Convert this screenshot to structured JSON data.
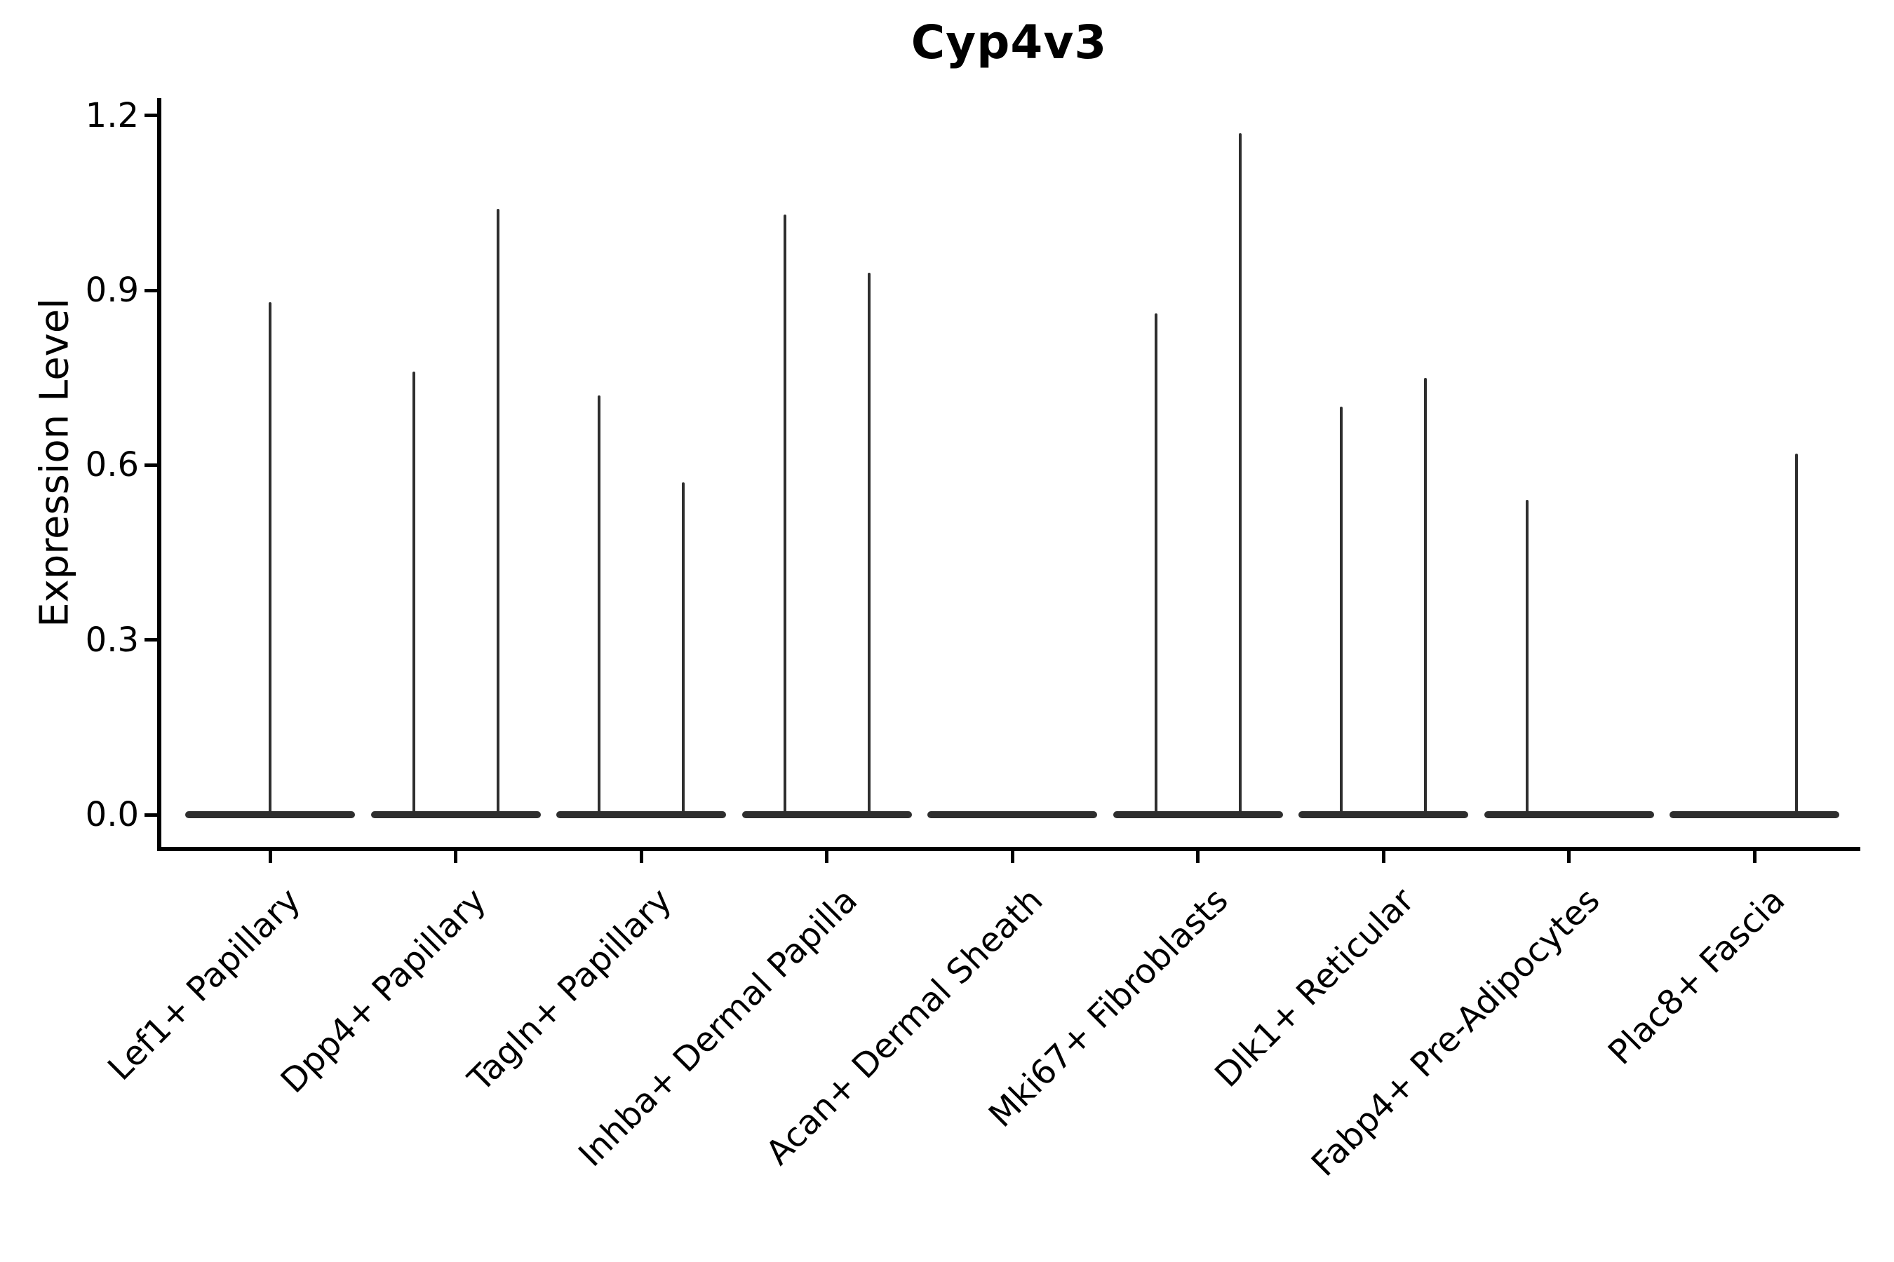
{
  "chart_data": {
    "type": "violin",
    "title": "Cyp4v3",
    "ylabel": "Expression Level",
    "xlabel": "",
    "yticks": [
      0.0,
      0.3,
      0.6,
      0.9,
      1.2
    ],
    "ylim": [
      -0.06,
      1.23
    ],
    "grid": false,
    "legend": "none",
    "x_tick_rotation": 45,
    "categories": [
      "Lef1+ Papillary",
      "Dpp4+ Papillary",
      "Tagln+ Papillary",
      "Inhba+ Dermal Papilla",
      "Acan+ Dermal Sheath",
      "Mki67+ Fibroblasts",
      "Dlk1+ Reticular",
      "Fabp4+ Pre-Adipocytes",
      "Plac8+ Fascia"
    ],
    "violins": [
      {
        "category": "Lef1+ Papillary",
        "spikes": [
          {
            "position": "center",
            "max_expression": 0.88
          }
        ]
      },
      {
        "category": "Dpp4+ Papillary",
        "spikes": [
          {
            "position": "left",
            "max_expression": 0.76
          },
          {
            "position": "right",
            "max_expression": 1.04
          }
        ]
      },
      {
        "category": "Tagln+ Papillary",
        "spikes": [
          {
            "position": "left",
            "max_expression": 0.72
          },
          {
            "position": "right",
            "max_expression": 0.57
          }
        ]
      },
      {
        "category": "Inhba+ Dermal Papilla",
        "spikes": [
          {
            "position": "left",
            "max_expression": 1.03
          },
          {
            "position": "right",
            "max_expression": 0.93
          }
        ]
      },
      {
        "category": "Acan+ Dermal Sheath",
        "spikes": []
      },
      {
        "category": "Mki67+ Fibroblasts",
        "spikes": [
          {
            "position": "left",
            "max_expression": 0.86
          },
          {
            "position": "right",
            "max_expression": 1.17
          }
        ]
      },
      {
        "category": "Dlk1+ Reticular",
        "spikes": [
          {
            "position": "left",
            "max_expression": 0.7
          },
          {
            "position": "right",
            "max_expression": 0.75
          }
        ]
      },
      {
        "category": "Fabp4+ Pre-Adipocytes",
        "spikes": [
          {
            "position": "left",
            "max_expression": 0.54
          }
        ]
      },
      {
        "category": "Plac8+ Fascia",
        "spikes": [
          {
            "position": "right",
            "max_expression": 0.62
          }
        ]
      }
    ]
  },
  "colors": {
    "ink": "#000000",
    "violin": "#2e2e2e",
    "background": "#ffffff"
  }
}
